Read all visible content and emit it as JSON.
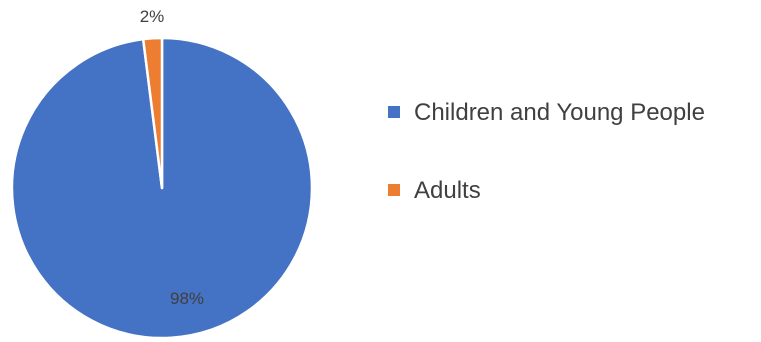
{
  "chart_data": {
    "type": "pie",
    "categories": [
      "Children and Young People",
      "Adults"
    ],
    "values": [
      98,
      2
    ],
    "data_labels": [
      "98%",
      "2%"
    ],
    "colors": [
      "#4472C4",
      "#ED7D31"
    ],
    "start_angle_deg": 0,
    "direction": "clockwise",
    "legend": {
      "position": "right",
      "entries": [
        "Children and Young People",
        "Adults"
      ]
    },
    "title": ""
  }
}
